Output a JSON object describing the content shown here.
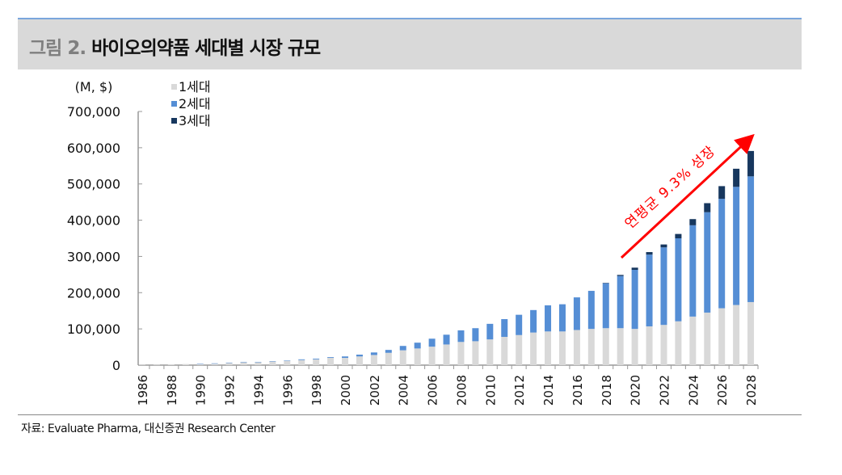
{
  "header": {
    "figure_no": "그림 2.",
    "title": "바이오의약품 세대별 시장 규모"
  },
  "source": "자료:  Evaluate Pharma, 대신증권 Research Center",
  "chart_data": {
    "type": "bar",
    "stacked": true,
    "ylabel": "(M, $)",
    "ylim": [
      0,
      700000
    ],
    "yticks": [
      "0",
      "100,000",
      "200,000",
      "300,000",
      "400,000",
      "500,000",
      "600,000",
      "700,000"
    ],
    "ytick_values": [
      0,
      100000,
      200000,
      300000,
      400000,
      500000,
      600000,
      700000
    ],
    "categories": [
      "1986",
      "1987",
      "1988",
      "1989",
      "1990",
      "1991",
      "1992",
      "1993",
      "1994",
      "1995",
      "1996",
      "1997",
      "1998",
      "1999",
      "2000",
      "2001",
      "2002",
      "2003",
      "2004",
      "2005",
      "2006",
      "2007",
      "2008",
      "2009",
      "2010",
      "2011",
      "2012",
      "2013",
      "2014",
      "2015",
      "2016",
      "2017",
      "2018",
      "2019",
      "2020",
      "2021",
      "2022",
      "2023",
      "2024",
      "2025",
      "2026",
      "2027",
      "2028"
    ],
    "xtick_labels_every": 2,
    "legend_position": "top-left",
    "grid": false,
    "series": [
      {
        "name": "1세대",
        "color": "#d9d9d9",
        "values": [
          1000,
          1000,
          2000,
          3000,
          3000,
          4000,
          6000,
          8000,
          8000,
          10000,
          12000,
          14000,
          16000,
          20000,
          20000,
          24000,
          28000,
          34000,
          41000,
          46000,
          51000,
          57000,
          64000,
          66000,
          71000,
          78000,
          83000,
          90000,
          93000,
          93000,
          97000,
          100000,
          102000,
          102000,
          100000,
          107000,
          111000,
          121000,
          134000,
          145000,
          157000,
          166000,
          174000
        ]
      },
      {
        "name": "2세대",
        "color": "#558ed5",
        "values": [
          0,
          0,
          0,
          0,
          1000,
          1000,
          1000,
          1000,
          1000,
          1000,
          1000,
          2000,
          2000,
          2000,
          4000,
          5000,
          7000,
          8000,
          12000,
          16000,
          22000,
          27000,
          32000,
          36000,
          43000,
          49000,
          56000,
          62000,
          72000,
          75000,
          90000,
          105000,
          124000,
          144000,
          163000,
          198000,
          214000,
          229000,
          252000,
          277000,
          302000,
          326000,
          347000
        ]
      },
      {
        "name": "3세대",
        "color": "#17375e",
        "values": [
          0,
          0,
          0,
          0,
          0,
          0,
          0,
          0,
          0,
          0,
          0,
          0,
          0,
          0,
          0,
          0,
          0,
          0,
          0,
          0,
          0,
          0,
          0,
          0,
          0,
          0,
          0,
          0,
          0,
          0,
          0,
          0,
          1000,
          3000,
          6000,
          7000,
          8000,
          12000,
          17000,
          25000,
          35000,
          50000,
          70000
        ]
      }
    ],
    "annotation": {
      "text": "연평균 9.3% 성장",
      "color": "#ff0000"
    }
  }
}
